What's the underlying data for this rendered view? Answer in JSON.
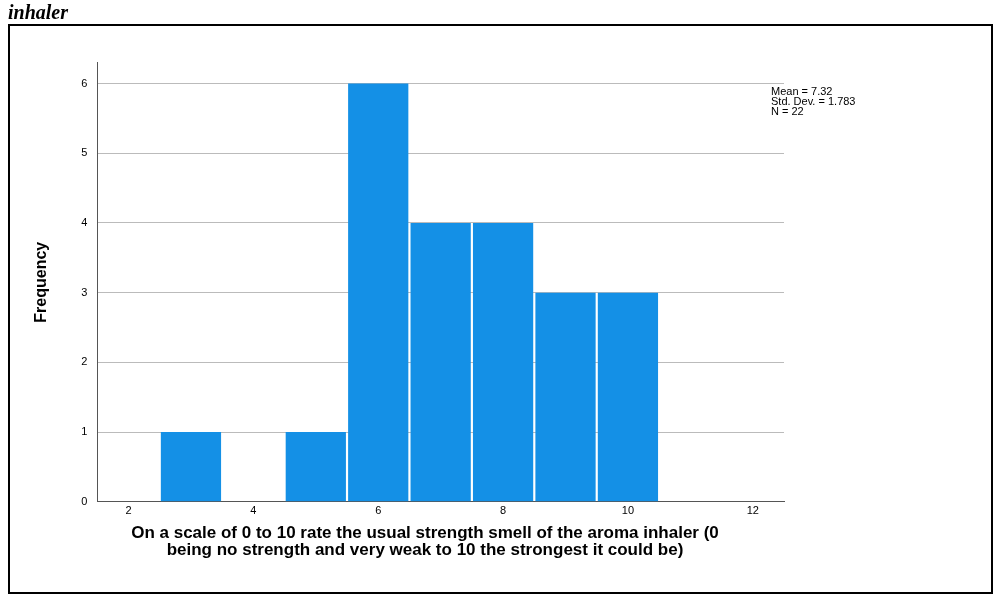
{
  "chart_data": {
    "type": "histogram",
    "title": "inhaler",
    "xlabel": "On a scale of 0 to 10 rate the usual strength smell of the aroma inhaler (0 being no strength and very weak to 10 the strongest it could be)",
    "ylabel": "Frequency",
    "bins": [
      2.5,
      3.5,
      4.5,
      5.5,
      6.5,
      7.5,
      8.5,
      9.5,
      10.5
    ],
    "values": [
      1,
      0,
      1,
      6,
      4,
      4,
      3,
      3
    ],
    "color": "#1490e6",
    "xlim": [
      1.5,
      12.5
    ],
    "xticks": [
      2,
      4,
      6,
      8,
      10,
      12
    ],
    "ylim": [
      0,
      6.3
    ],
    "yticks": [
      0,
      1,
      2,
      3,
      4,
      5,
      6
    ],
    "grid": "y",
    "legend": false,
    "annotations": [
      "Mean = 7.32",
      "Std. Dev. = 1.783",
      "N = 22"
    ]
  }
}
